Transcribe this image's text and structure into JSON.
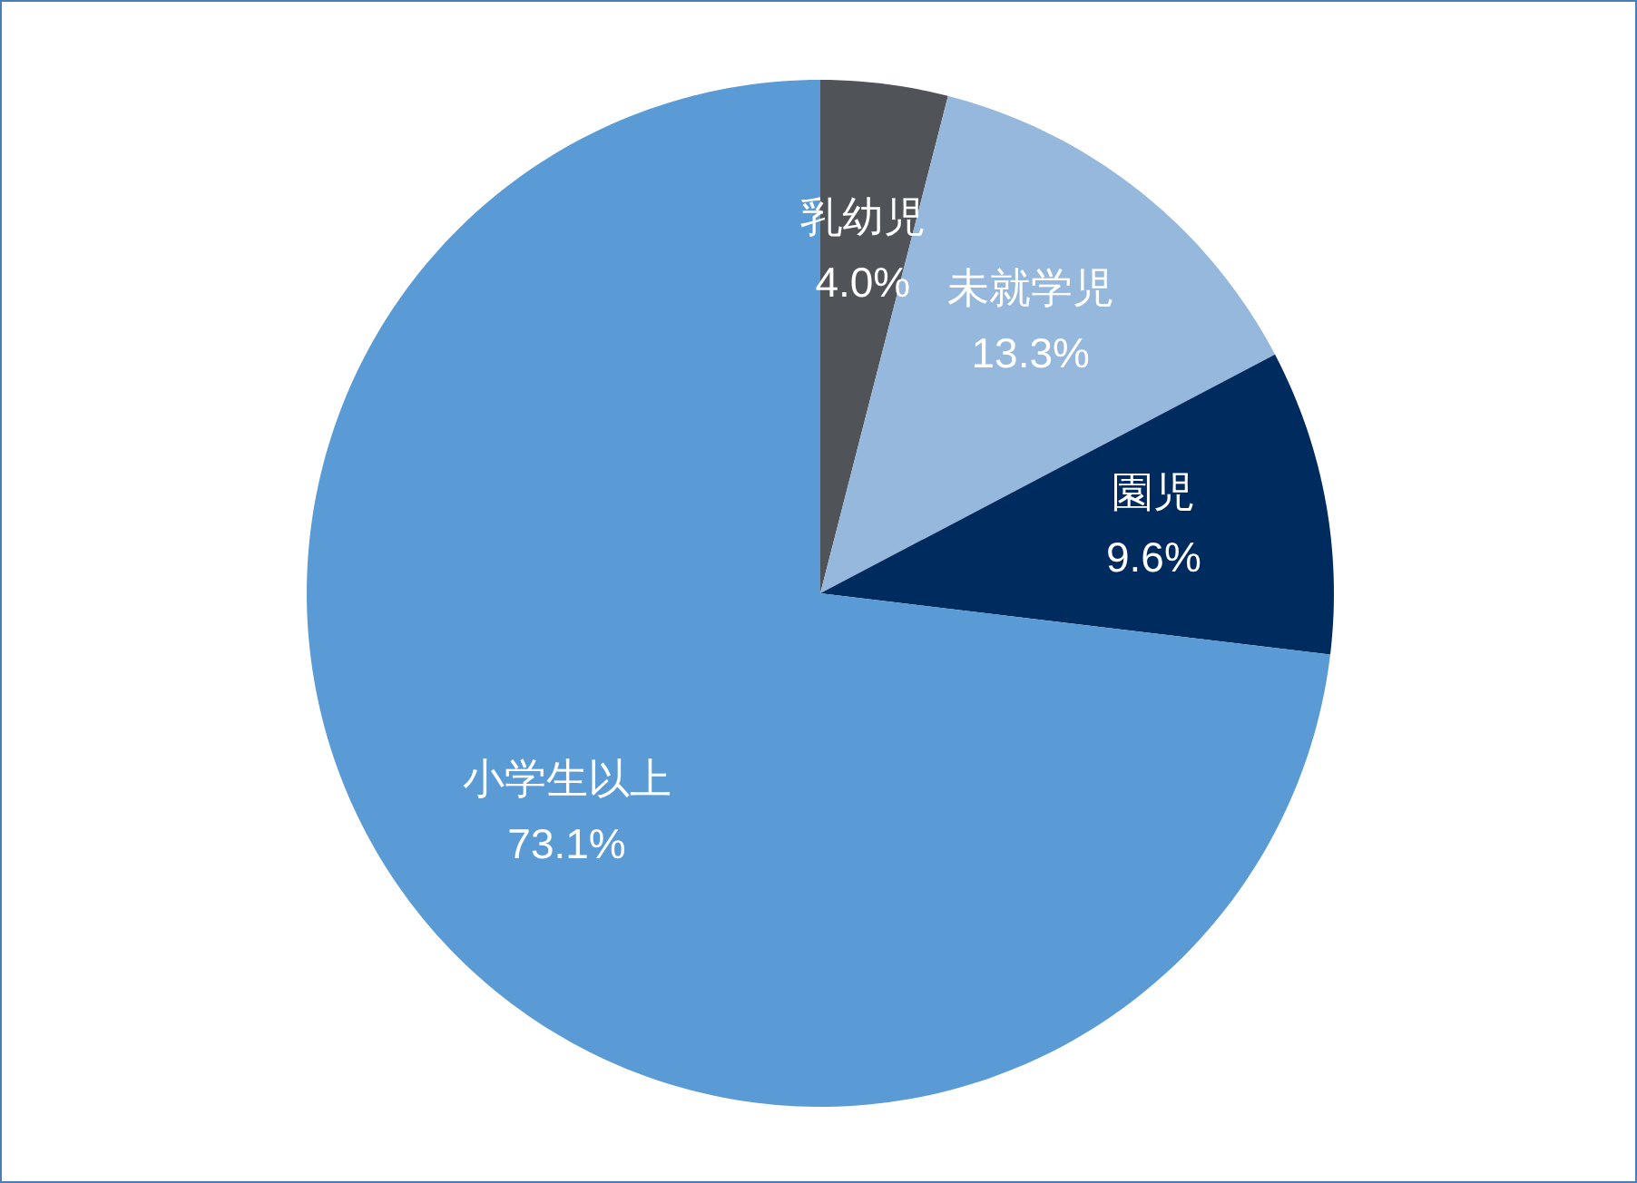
{
  "chart_data": {
    "type": "pie",
    "categories": [
      "乳幼児",
      "未就学児",
      "園児",
      "小学生以上"
    ],
    "values": [
      4.0,
      13.3,
      9.6,
      73.1
    ],
    "value_labels": [
      "4.0%",
      "13.3%",
      "9.6%",
      "73.1%"
    ],
    "colors": [
      "#505459",
      "#95b8dc",
      "#002b5f",
      "#5b9bd5"
    ]
  }
}
